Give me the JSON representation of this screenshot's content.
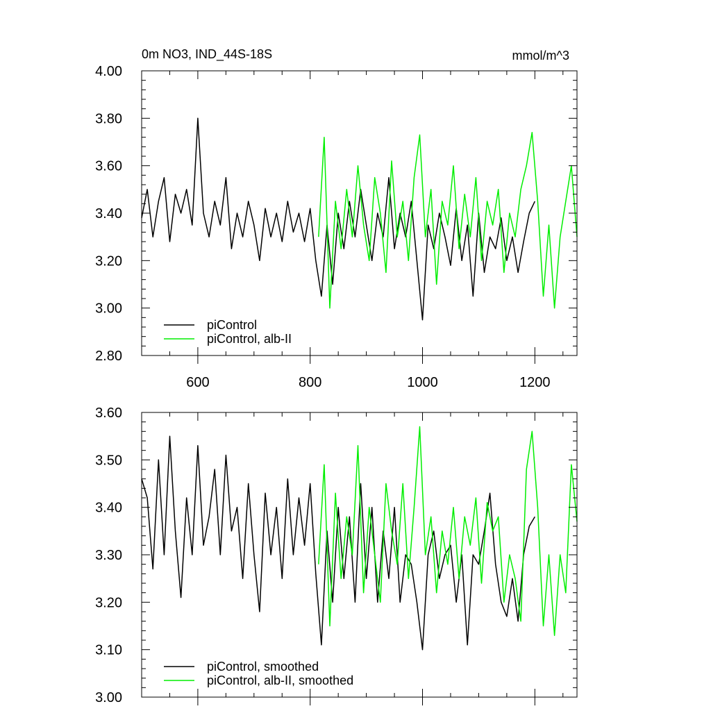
{
  "chart_data": [
    {
      "type": "line",
      "title": "0m NO3, IND_44S-18S",
      "units": "mmol/m^3",
      "xlim": [
        500,
        1275
      ],
      "ylim": [
        2.8,
        4.0
      ],
      "x_ticks": [
        600,
        800,
        1000,
        1200
      ],
      "x_tick_labels": [
        "600",
        "800",
        "1000",
        "1200"
      ],
      "y_ticks": [
        2.8,
        3.0,
        3.2,
        3.4,
        3.6,
        3.8,
        4.0
      ],
      "y_tick_labels": [
        "2.80",
        "3.00",
        "3.20",
        "3.40",
        "3.60",
        "3.80",
        "4.00"
      ],
      "legend_position": "bottom-left",
      "series": [
        {
          "name": "piControl",
          "color": "#000000",
          "x": [
            500,
            510,
            520,
            530,
            540,
            550,
            560,
            570,
            580,
            590,
            600,
            610,
            620,
            630,
            640,
            650,
            660,
            670,
            680,
            690,
            700,
            710,
            720,
            730,
            740,
            750,
            760,
            770,
            780,
            790,
            800,
            810,
            820,
            830,
            840,
            850,
            860,
            870,
            880,
            890,
            900,
            910,
            920,
            930,
            940,
            950,
            960,
            970,
            980,
            990,
            1000,
            1010,
            1020,
            1030,
            1040,
            1050,
            1060,
            1070,
            1080,
            1090,
            1100,
            1110,
            1120,
            1130,
            1140,
            1150,
            1160,
            1170,
            1180,
            1190,
            1200
          ],
          "values": [
            3.38,
            3.5,
            3.3,
            3.45,
            3.55,
            3.28,
            3.48,
            3.4,
            3.5,
            3.35,
            3.8,
            3.4,
            3.3,
            3.45,
            3.35,
            3.55,
            3.25,
            3.4,
            3.3,
            3.45,
            3.35,
            3.2,
            3.42,
            3.3,
            3.4,
            3.28,
            3.45,
            3.32,
            3.4,
            3.28,
            3.42,
            3.2,
            3.05,
            3.35,
            3.1,
            3.4,
            3.25,
            3.45,
            3.3,
            3.5,
            3.35,
            3.2,
            3.4,
            3.3,
            3.55,
            3.25,
            3.4,
            3.3,
            3.45,
            3.2,
            2.95,
            3.35,
            3.25,
            3.4,
            3.3,
            3.18,
            3.42,
            3.2,
            3.35,
            3.05,
            3.4,
            3.15,
            3.3,
            3.25,
            3.38,
            3.2,
            3.3,
            3.15,
            3.28,
            3.4,
            3.45
          ]
        },
        {
          "name": "piControl, alb-II",
          "color": "#00ee00",
          "x": [
            815,
            825,
            835,
            845,
            855,
            865,
            875,
            885,
            895,
            905,
            915,
            925,
            935,
            945,
            955,
            965,
            975,
            985,
            995,
            1005,
            1015,
            1025,
            1035,
            1045,
            1055,
            1065,
            1075,
            1085,
            1095,
            1105,
            1115,
            1125,
            1135,
            1145,
            1155,
            1165,
            1175,
            1185,
            1195,
            1205,
            1215,
            1225,
            1235,
            1245,
            1255,
            1265,
            1275
          ],
          "values": [
            3.3,
            3.72,
            3.0,
            3.45,
            3.25,
            3.5,
            3.3,
            3.6,
            3.35,
            3.2,
            3.55,
            3.4,
            3.15,
            3.62,
            3.3,
            3.45,
            3.2,
            3.55,
            3.73,
            3.3,
            3.5,
            3.1,
            3.45,
            3.35,
            3.6,
            3.25,
            3.48,
            3.3,
            3.55,
            3.2,
            3.45,
            3.35,
            3.5,
            3.15,
            3.4,
            3.3,
            3.5,
            3.6,
            3.74,
            3.45,
            3.05,
            3.35,
            3.0,
            3.3,
            3.45,
            3.6,
            3.3
          ]
        }
      ]
    },
    {
      "type": "line",
      "xlim": [
        500,
        1275
      ],
      "ylim": [
        3.0,
        3.6
      ],
      "x_ticks": [
        600,
        800,
        1000,
        1200
      ],
      "y_ticks": [
        3.0,
        3.1,
        3.2,
        3.3,
        3.4,
        3.5,
        3.6
      ],
      "y_tick_labels": [
        "3.00",
        "3.10",
        "3.20",
        "3.30",
        "3.40",
        "3.50",
        "3.60"
      ],
      "legend_position": "bottom-left",
      "series": [
        {
          "name": "piControl, smoothed",
          "color": "#000000",
          "x": [
            500,
            510,
            520,
            530,
            540,
            550,
            560,
            570,
            580,
            590,
            600,
            610,
            620,
            630,
            640,
            650,
            660,
            670,
            680,
            690,
            700,
            710,
            720,
            730,
            740,
            750,
            760,
            770,
            780,
            790,
            800,
            810,
            820,
            830,
            840,
            850,
            860,
            870,
            880,
            890,
            900,
            910,
            920,
            930,
            940,
            950,
            960,
            970,
            980,
            990,
            1000,
            1010,
            1020,
            1030,
            1040,
            1050,
            1060,
            1070,
            1080,
            1090,
            1100,
            1110,
            1120,
            1130,
            1140,
            1150,
            1160,
            1170,
            1180,
            1190,
            1200
          ],
          "values": [
            3.46,
            3.42,
            3.27,
            3.5,
            3.3,
            3.55,
            3.35,
            3.21,
            3.42,
            3.3,
            3.53,
            3.32,
            3.38,
            3.48,
            3.3,
            3.51,
            3.35,
            3.4,
            3.25,
            3.45,
            3.3,
            3.18,
            3.43,
            3.3,
            3.4,
            3.25,
            3.46,
            3.3,
            3.42,
            3.32,
            3.45,
            3.26,
            3.11,
            3.35,
            3.2,
            3.4,
            3.25,
            3.38,
            3.2,
            3.45,
            3.25,
            3.4,
            3.2,
            3.35,
            3.25,
            3.4,
            3.2,
            3.3,
            3.28,
            3.2,
            3.1,
            3.3,
            3.35,
            3.25,
            3.3,
            3.32,
            3.2,
            3.3,
            3.11,
            3.3,
            3.28,
            3.35,
            3.43,
            3.28,
            3.2,
            3.17,
            3.25,
            3.16,
            3.3,
            3.36,
            3.38
          ]
        },
        {
          "name": "piControl, alb-II, smoothed",
          "color": "#00ee00",
          "x": [
            815,
            825,
            835,
            845,
            855,
            865,
            875,
            885,
            895,
            905,
            915,
            925,
            935,
            945,
            955,
            965,
            975,
            985,
            995,
            1005,
            1015,
            1025,
            1035,
            1045,
            1055,
            1065,
            1075,
            1085,
            1095,
            1105,
            1115,
            1125,
            1135,
            1145,
            1155,
            1165,
            1175,
            1185,
            1195,
            1205,
            1215,
            1225,
            1235,
            1245,
            1255,
            1265,
            1275
          ],
          "values": [
            3.28,
            3.49,
            3.15,
            3.43,
            3.25,
            3.38,
            3.3,
            3.53,
            3.22,
            3.4,
            3.3,
            3.2,
            3.45,
            3.35,
            3.28,
            3.45,
            3.25,
            3.4,
            3.57,
            3.3,
            3.38,
            3.22,
            3.35,
            3.28,
            3.4,
            3.25,
            3.38,
            3.32,
            3.42,
            3.24,
            3.41,
            3.35,
            3.38,
            3.2,
            3.3,
            3.25,
            3.16,
            3.48,
            3.56,
            3.4,
            3.15,
            3.3,
            3.13,
            3.3,
            3.22,
            3.49,
            3.37
          ]
        }
      ]
    }
  ]
}
